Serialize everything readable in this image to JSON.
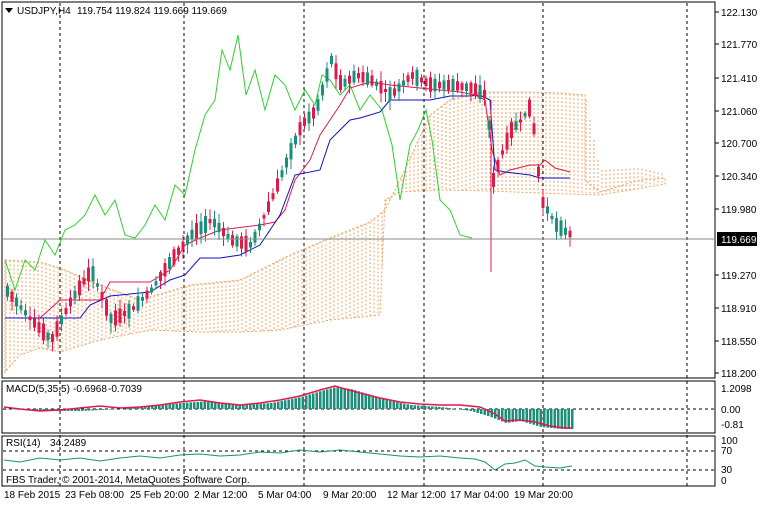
{
  "main_chart": {
    "symbol_header": "USDJPY,H4",
    "ohlc": "119.754 119.824 119.669 119.669",
    "price_levels": [
      "122.130",
      "121.770",
      "121.410",
      "121.060",
      "120.700",
      "120.340",
      "119.980",
      "119.669",
      "119.270",
      "118.910",
      "118.550",
      "118.200"
    ],
    "current_price": "119.669"
  },
  "macd_panel": {
    "label": "MACD(5,35,5)",
    "value1": "-0.6968",
    "value2": "-0.7039",
    "levels": [
      "1.2098",
      "0.00",
      "-0.81"
    ]
  },
  "rsi_panel": {
    "label": "RSI(14)",
    "value": "34.2489",
    "levels": [
      "100",
      "70",
      "30",
      "0"
    ],
    "copyright": "FBS Trader, © 2001-2014, MetaQuotes Software Corp."
  },
  "time_axis": [
    "18 Feb 2015",
    "23 Feb 08:00",
    "25 Feb 20:00",
    "2 Mar 12:00",
    "5 Mar 04:00",
    "9 Mar 20:00",
    "12 Mar 12:00",
    "17 Mar 04:00",
    "19 Mar 20:00"
  ],
  "colors": {
    "bull": "#1a8f7a",
    "bear": "#e0194a",
    "tenkan": "#e0194a",
    "kijun": "#1010c0",
    "chikou": "#2fd02f",
    "cloud": "#f0a060",
    "macd_hist": "#1a8f7a",
    "macd_signal": "#e0194a"
  }
}
